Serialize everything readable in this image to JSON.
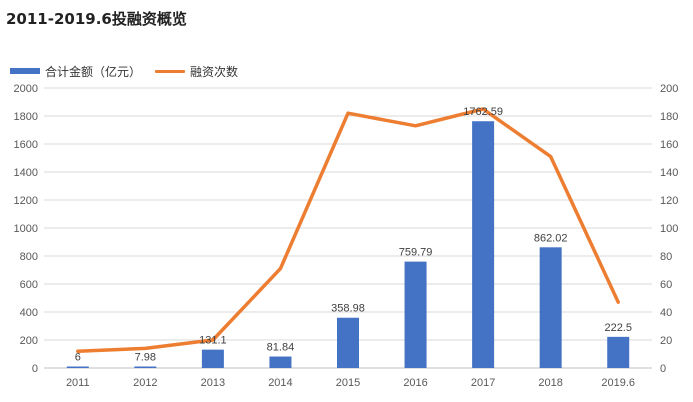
{
  "chart_data": {
    "type": "bar",
    "title": "2011-2019.6投融资概览",
    "categories": [
      "2011",
      "2012",
      "2013",
      "2014",
      "2015",
      "2016",
      "2017",
      "2018",
      "2019.6"
    ],
    "series": [
      {
        "name": "合计金额（亿元）",
        "type": "bar",
        "axis": "left",
        "color": "#4472C4",
        "values": [
          6,
          7.98,
          131.1,
          81.84,
          358.98,
          759.79,
          1762.59,
          862.02,
          222.5
        ],
        "labels": [
          "6",
          "7.98",
          "131.1",
          "81.84",
          "358.98",
          "759.79",
          "1762.59",
          "862.02",
          "222.5"
        ]
      },
      {
        "name": "融资次数",
        "type": "line",
        "axis": "right",
        "color": "#ED7D31",
        "values": [
          12,
          14,
          20,
          71,
          182,
          173,
          185,
          151,
          47
        ]
      }
    ],
    "ylim": [
      0,
      2000
    ],
    "yticks": [
      0,
      200,
      400,
      600,
      800,
      1000,
      1200,
      1400,
      1600,
      1800,
      2000
    ],
    "y2lim": [
      0,
      200
    ],
    "y2ticks": [
      0,
      20,
      40,
      60,
      80,
      100,
      120,
      140,
      160,
      180,
      200
    ],
    "grid": true,
    "legend_position": "top-left"
  }
}
